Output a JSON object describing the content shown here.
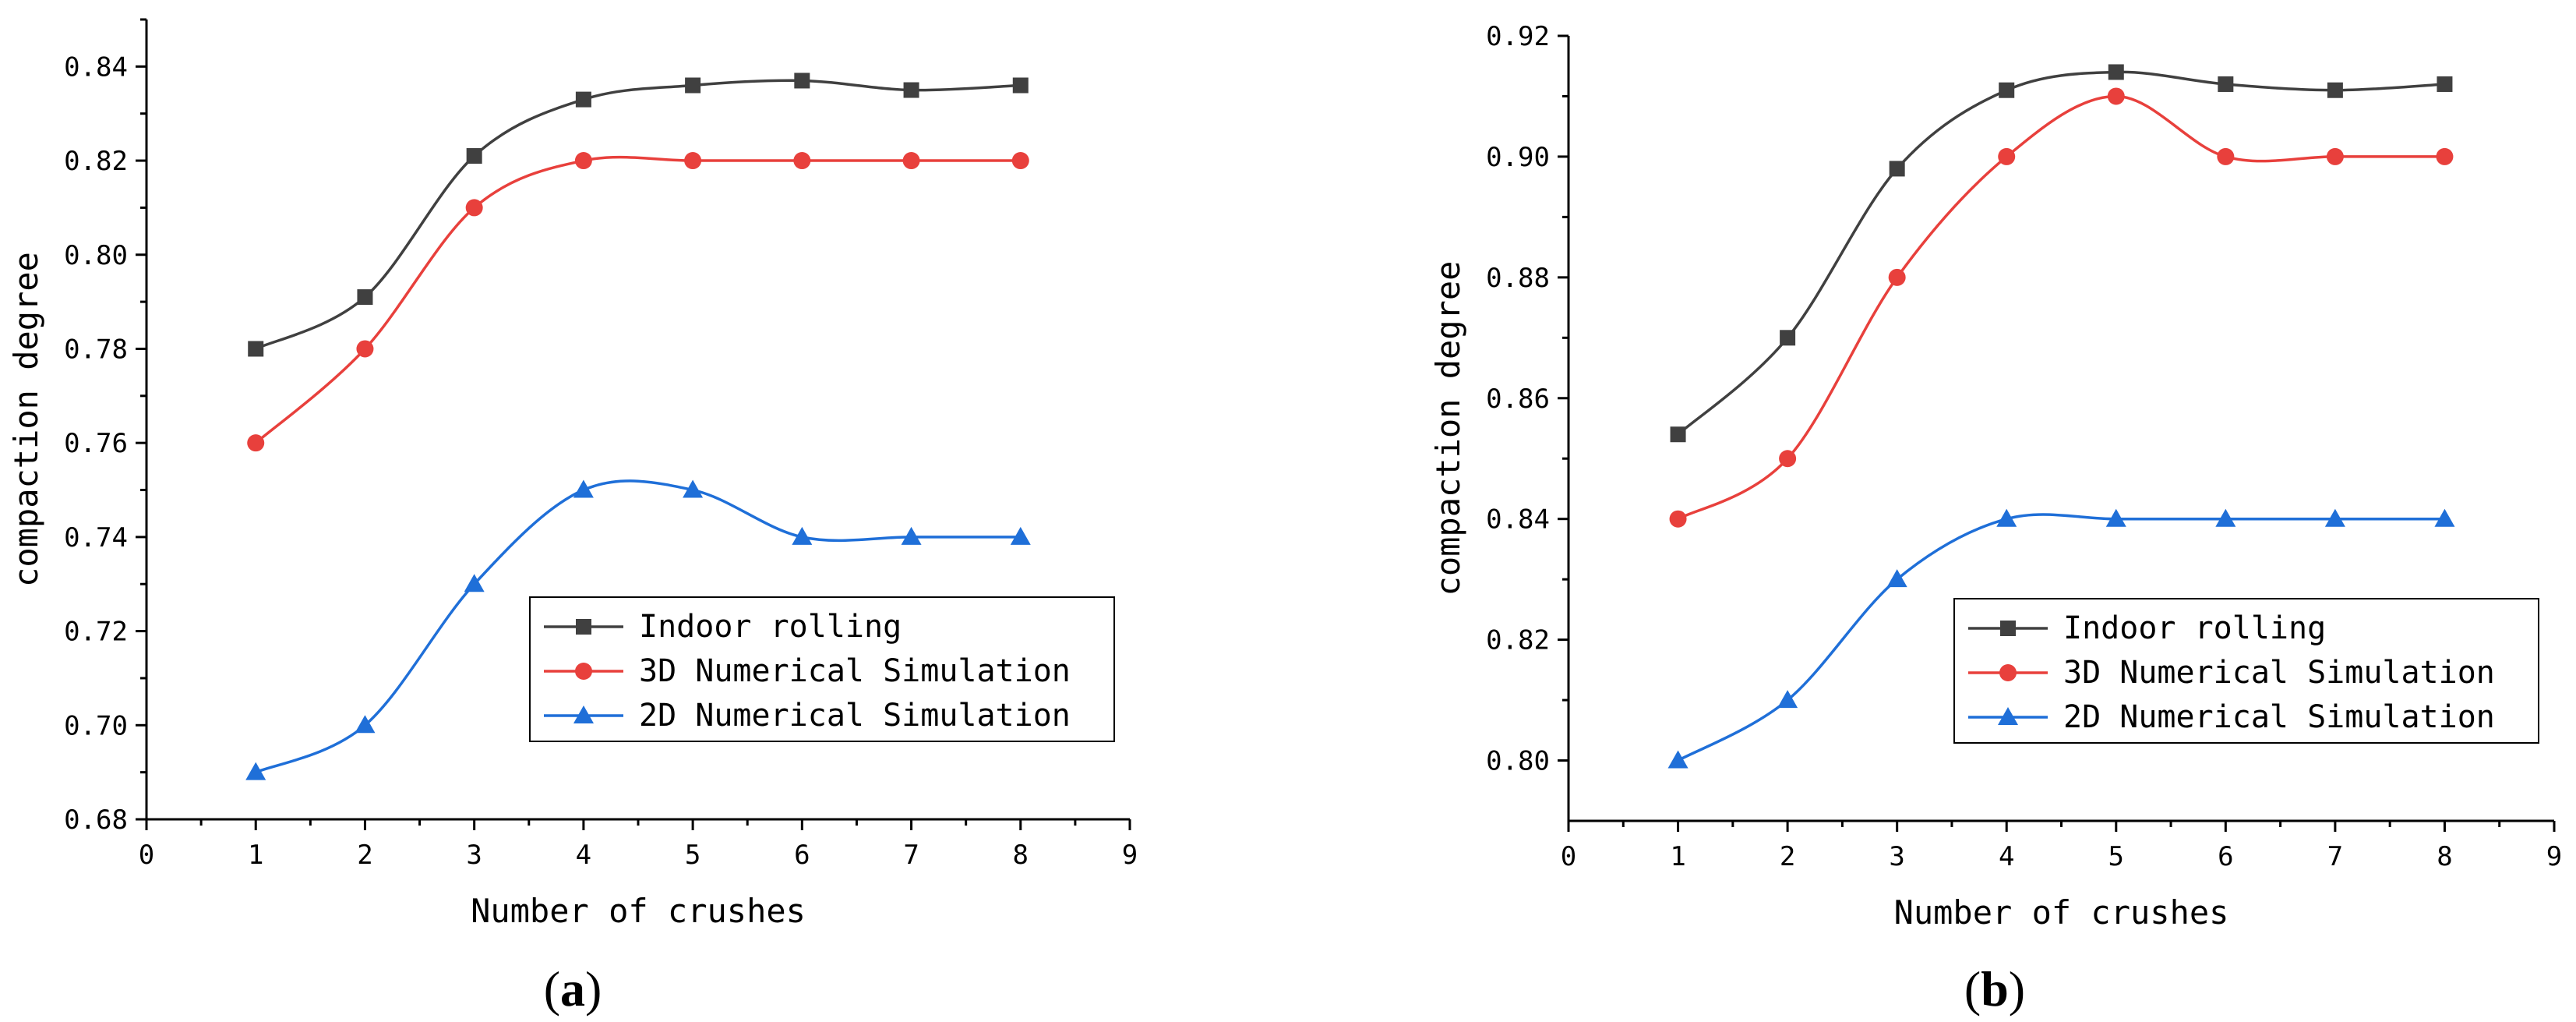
{
  "chart_data": [
    {
      "type": "line",
      "panel_label": "a",
      "title": "",
      "xlabel": "Number of crushes",
      "ylabel": "compaction degree",
      "xlim": [
        0,
        9
      ],
      "ylim": [
        0.68,
        0.85
      ],
      "xticks": [
        "0",
        "1",
        "2",
        "3",
        "4",
        "5",
        "6",
        "7",
        "8",
        "9"
      ],
      "yticks": [
        "0.68",
        "0.70",
        "0.72",
        "0.74",
        "0.76",
        "0.78",
        "0.80",
        "0.82",
        "0.84"
      ],
      "x": [
        1,
        2,
        3,
        4,
        5,
        6,
        7,
        8
      ],
      "legend_position": "bottom-right",
      "series": [
        {
          "name": "Indoor rolling",
          "color": "#404040",
          "marker": "square",
          "values": [
            0.78,
            0.791,
            0.821,
            0.833,
            0.836,
            0.837,
            0.835,
            0.836
          ]
        },
        {
          "name": "3D Numerical Simulation",
          "color": "#e8403c",
          "marker": "circle",
          "values": [
            0.76,
            0.78,
            0.81,
            0.82,
            0.82,
            0.82,
            0.82,
            0.82
          ]
        },
        {
          "name": "2D Numerical Simulation",
          "color": "#1f6fd8",
          "marker": "triangle",
          "values": [
            0.69,
            0.7,
            0.73,
            0.75,
            0.75,
            0.74,
            0.74,
            0.74
          ]
        }
      ]
    },
    {
      "type": "line",
      "panel_label": "b",
      "title": "",
      "xlabel": "Number of crushes",
      "ylabel": "compaction degree",
      "xlim": [
        0,
        9
      ],
      "ylim": [
        0.79,
        0.92
      ],
      "xticks": [
        "0",
        "1",
        "2",
        "3",
        "4",
        "5",
        "6",
        "7",
        "8",
        "9"
      ],
      "yticks": [
        "0.80",
        "0.82",
        "0.84",
        "0.86",
        "0.88",
        "0.90",
        "0.92"
      ],
      "x": [
        1,
        2,
        3,
        4,
        5,
        6,
        7,
        8
      ],
      "legend_position": "bottom-right",
      "series": [
        {
          "name": "Indoor rolling",
          "color": "#404040",
          "marker": "square",
          "values": [
            0.854,
            0.87,
            0.898,
            0.911,
            0.914,
            0.912,
            0.911,
            0.912
          ]
        },
        {
          "name": "3D Numerical Simulation",
          "color": "#e8403c",
          "marker": "circle",
          "values": [
            0.84,
            0.85,
            0.88,
            0.9,
            0.91,
            0.9,
            0.9,
            0.9
          ]
        },
        {
          "name": "2D Numerical Simulation",
          "color": "#1f6fd8",
          "marker": "triangle",
          "values": [
            0.8,
            0.81,
            0.83,
            0.84,
            0.84,
            0.84,
            0.84,
            0.84
          ]
        }
      ]
    }
  ]
}
